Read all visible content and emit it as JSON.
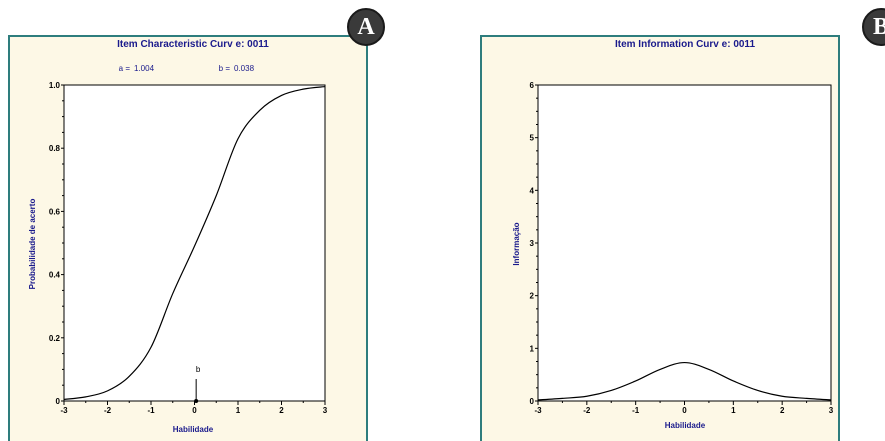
{
  "panels": {
    "a": {
      "badge": "A"
    },
    "b": {
      "badge": "B"
    }
  },
  "chart_data": [
    {
      "id": "icc",
      "type": "line",
      "title": "Item Characteristic Curv e: 0011",
      "params": {
        "a_label": "a =",
        "a_value": "1.004",
        "b_label": "b =",
        "b_value": "0.038"
      },
      "xlabel": "Habilidade",
      "ylabel": "Probabilidade de acerto",
      "xlim": [
        -3,
        3
      ],
      "ylim": [
        0,
        1
      ],
      "xticks": [
        -3,
        -2,
        -1,
        0,
        1,
        2,
        3
      ],
      "xtick_labels": [
        "-3",
        "-2",
        "-1",
        "0",
        "1",
        "2",
        "3"
      ],
      "yticks": [
        0,
        0.2,
        0.4,
        0.6,
        0.8,
        1.0
      ],
      "ytick_labels": [
        "0",
        "0.2",
        "0.4",
        "0.6",
        "0.8",
        "1.0"
      ],
      "marker": {
        "label": "b",
        "x": 0.038
      },
      "series": [
        {
          "x": [
            -3,
            -2.5,
            -2,
            -1.5,
            -1,
            -0.5,
            0,
            0.5,
            1,
            1.5,
            2,
            2.5,
            3
          ],
          "y": [
            0.005,
            0.013,
            0.032,
            0.078,
            0.17,
            0.34,
            0.49,
            0.65,
            0.83,
            0.92,
            0.967,
            0.987,
            0.995
          ]
        }
      ],
      "line_color": "#000000"
    },
    {
      "id": "iic",
      "type": "line",
      "title": "Item Information Curv e: 0011",
      "xlabel": "Habilidade",
      "ylabel": "Informação",
      "xlim": [
        -3,
        3
      ],
      "ylim": [
        0,
        6
      ],
      "xticks": [
        -3,
        -2,
        -1,
        0,
        1,
        2,
        3
      ],
      "xtick_labels": [
        "-3",
        "-2",
        "-1",
        "0",
        "1",
        "2",
        "3"
      ],
      "yticks": [
        0,
        1,
        2,
        3,
        4,
        5,
        6
      ],
      "ytick_labels": [
        "0",
        "1",
        "2",
        "3",
        "4",
        "5",
        "6"
      ],
      "series": [
        {
          "x": [
            -3,
            -2.5,
            -2,
            -1.5,
            -1,
            -0.5,
            0,
            0.5,
            1,
            1.5,
            2,
            2.5,
            3
          ],
          "y": [
            0.02,
            0.05,
            0.09,
            0.2,
            0.38,
            0.6,
            0.73,
            0.6,
            0.38,
            0.2,
            0.09,
            0.05,
            0.02
          ]
        }
      ],
      "line_color": "#000000"
    }
  ]
}
